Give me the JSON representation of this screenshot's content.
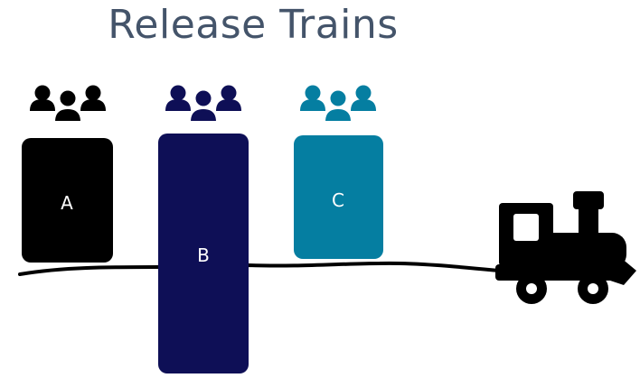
{
  "title": "Release Trains",
  "teams": [
    {
      "label": "A",
      "color": "#000000",
      "icon_name": "team-icon"
    },
    {
      "label": "B",
      "color": "#0e0f56",
      "icon_name": "team-icon"
    },
    {
      "label": "C",
      "color": "#057ea1",
      "icon_name": "team-icon"
    }
  ],
  "train": {
    "icon_name": "locomotive-icon",
    "color": "#000000"
  },
  "track": {
    "color": "#000000"
  }
}
